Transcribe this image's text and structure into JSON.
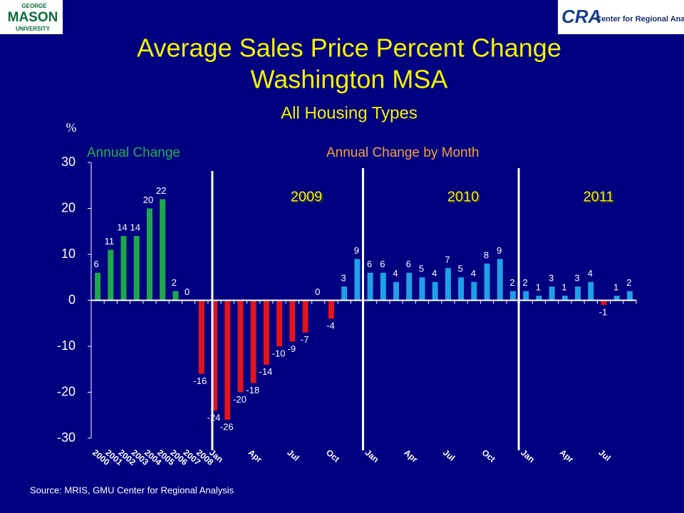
{
  "logos": {
    "left": [
      "GEORGE",
      "MASON",
      "UNIVERSITY"
    ],
    "right": [
      "CRA",
      "Center for Regional Analysis"
    ]
  },
  "chart_data": {
    "type": "bar",
    "title": [
      "Average Sales Price Percent Change",
      "Washington MSA"
    ],
    "subtitle": "All Housing Types",
    "y_label": "%",
    "ylim": [
      -30,
      30
    ],
    "yticks": [
      -30,
      -20,
      -10,
      0,
      10,
      20,
      30
    ],
    "annotations": [
      "2009",
      "2010",
      "2011"
    ],
    "series": [
      {
        "name": "Annual Change",
        "color": "#1fa84a",
        "negative_color": "#e3141b",
        "categories": [
          "2000",
          "2001",
          "2002",
          "2003",
          "2004",
          "2005",
          "2006",
          "2007",
          "2008"
        ],
        "values": [
          6,
          11,
          14,
          14,
          20,
          22,
          2,
          0,
          -16
        ]
      },
      {
        "name": "Annual Change by Month",
        "color": "#1f9fe6",
        "negative_color": "#e3141b",
        "categories": [
          "Jan",
          null,
          null,
          "Apr",
          null,
          null,
          "Jul",
          null,
          null,
          "Oct",
          null,
          null,
          "Jan",
          null,
          null,
          "Apr",
          null,
          null,
          "Jul",
          null,
          null,
          "Oct",
          null,
          null,
          "Jan",
          null,
          null,
          "Apr",
          null,
          null,
          "Jul",
          null,
          null
        ],
        "values": [
          -24,
          -26,
          -20,
          -18,
          -14,
          -10,
          -9,
          -7,
          0,
          -4,
          3,
          9,
          6,
          6,
          4,
          6,
          5,
          4,
          7,
          5,
          4,
          8,
          9,
          2,
          2,
          1,
          3,
          1,
          3,
          4,
          -1,
          1,
          2
        ]
      }
    ],
    "source": "Source: MRIS, GMU Center for Regional Analysis"
  }
}
